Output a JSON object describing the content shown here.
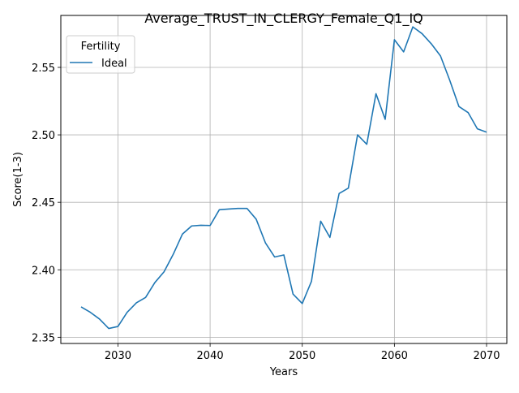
{
  "chart_data": {
    "type": "line",
    "title": "Average_TRUST_IN_CLERGY_Female_Q1_IQ",
    "xlabel": "Years",
    "ylabel": "Score(1-3)",
    "xlim": [
      2023.8,
      2072.2
    ],
    "ylim": [
      2.3454,
      2.5885
    ],
    "xticks": [
      2030,
      2040,
      2050,
      2060,
      2070
    ],
    "xtick_labels": [
      "2030",
      "2040",
      "2050",
      "2060",
      "2070"
    ],
    "yticks": [
      2.35,
      2.4,
      2.45,
      2.5,
      2.55
    ],
    "ytick_labels": [
      "2.35",
      "2.40",
      "2.45",
      "2.50",
      "2.55"
    ],
    "grid": true,
    "legend": {
      "title": "Fertility",
      "placement": "upper-left",
      "entries": [
        "Ideal"
      ]
    },
    "colors": {
      "Ideal": "#1f77b4"
    },
    "x": [
      2026,
      2027,
      2028,
      2029,
      2030,
      2031,
      2032,
      2033,
      2034,
      2035,
      2036,
      2037,
      2038,
      2039,
      2040,
      2041,
      2042,
      2043,
      2044,
      2045,
      2046,
      2047,
      2048,
      2049,
      2050,
      2051,
      2052,
      2053,
      2054,
      2055,
      2056,
      2057,
      2058,
      2059,
      2060,
      2061,
      2062,
      2063,
      2064,
      2065,
      2066,
      2067,
      2068,
      2069,
      2070
    ],
    "series": [
      {
        "name": "Ideal",
        "values": [
          2.3725,
          2.3685,
          2.3635,
          2.3565,
          2.358,
          2.3685,
          2.3755,
          2.3795,
          2.3905,
          2.3985,
          2.4115,
          2.4265,
          2.4325,
          2.433,
          2.4328,
          2.4445,
          2.445,
          2.4455,
          2.4455,
          2.4375,
          2.42,
          2.4095,
          2.411,
          2.382,
          2.375,
          2.3915,
          2.436,
          2.424,
          2.4565,
          2.4605,
          2.5,
          2.493,
          2.5305,
          2.5115,
          2.5705,
          2.5615,
          2.58,
          2.575,
          2.5675,
          2.5585,
          2.5405,
          2.521,
          2.5165,
          2.5045,
          2.502
        ]
      }
    ]
  }
}
